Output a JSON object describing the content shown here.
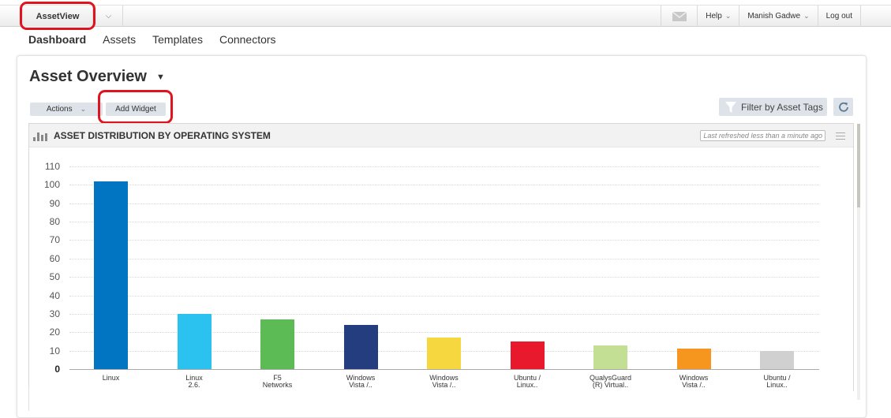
{
  "topbar": {
    "app_name": "AssetView",
    "app_menu_icon": "chevron-down-icon",
    "mail_icon": "envelope-icon",
    "help_label": "Help",
    "user_label": "Manish Gadwe",
    "logout_label": "Log out"
  },
  "nav": {
    "items": [
      {
        "label": "Dashboard",
        "active": true
      },
      {
        "label": "Assets",
        "active": false
      },
      {
        "label": "Templates",
        "active": false
      },
      {
        "label": "Connectors",
        "active": false
      }
    ]
  },
  "dashboard": {
    "title": "Asset Overview",
    "actions_label": "Actions",
    "add_widget_label": "Add Widget",
    "filter_label": "Filter by Asset Tags",
    "refresh_icon": "refresh-icon"
  },
  "widget": {
    "title": "ASSET DISTRIBUTION BY OPERATING SYSTEM",
    "refreshed_text": "Last refreshed less than a minute ago",
    "menu_icon": "hamburger-icon"
  },
  "chart_data": {
    "type": "bar",
    "title": "ASSET DISTRIBUTION BY OPERATING SYSTEM",
    "xlabel": "",
    "ylabel": "",
    "ylim": [
      0,
      110
    ],
    "yticks": [
      0,
      10,
      20,
      30,
      40,
      50,
      60,
      70,
      80,
      90,
      100,
      110
    ],
    "grid": true,
    "legend": "none",
    "categories": [
      "Linux",
      "Linux\n2.6.",
      "F5\nNetworks",
      "Windows\nVista /..",
      "Windows\nVista /..",
      "Ubuntu /\nLinux..",
      "QualysGuard\n(R) Virtual..",
      "Windows\nVista /..",
      "Ubuntu /\nLinux.."
    ],
    "values": [
      102,
      30,
      27,
      24,
      17,
      15,
      13,
      11,
      10
    ],
    "colors": [
      "#0174c2",
      "#2cc2f0",
      "#5cbb55",
      "#233d7f",
      "#f6d73f",
      "#e8192c",
      "#c3df94",
      "#f7961f",
      "#d0d0d0"
    ]
  }
}
